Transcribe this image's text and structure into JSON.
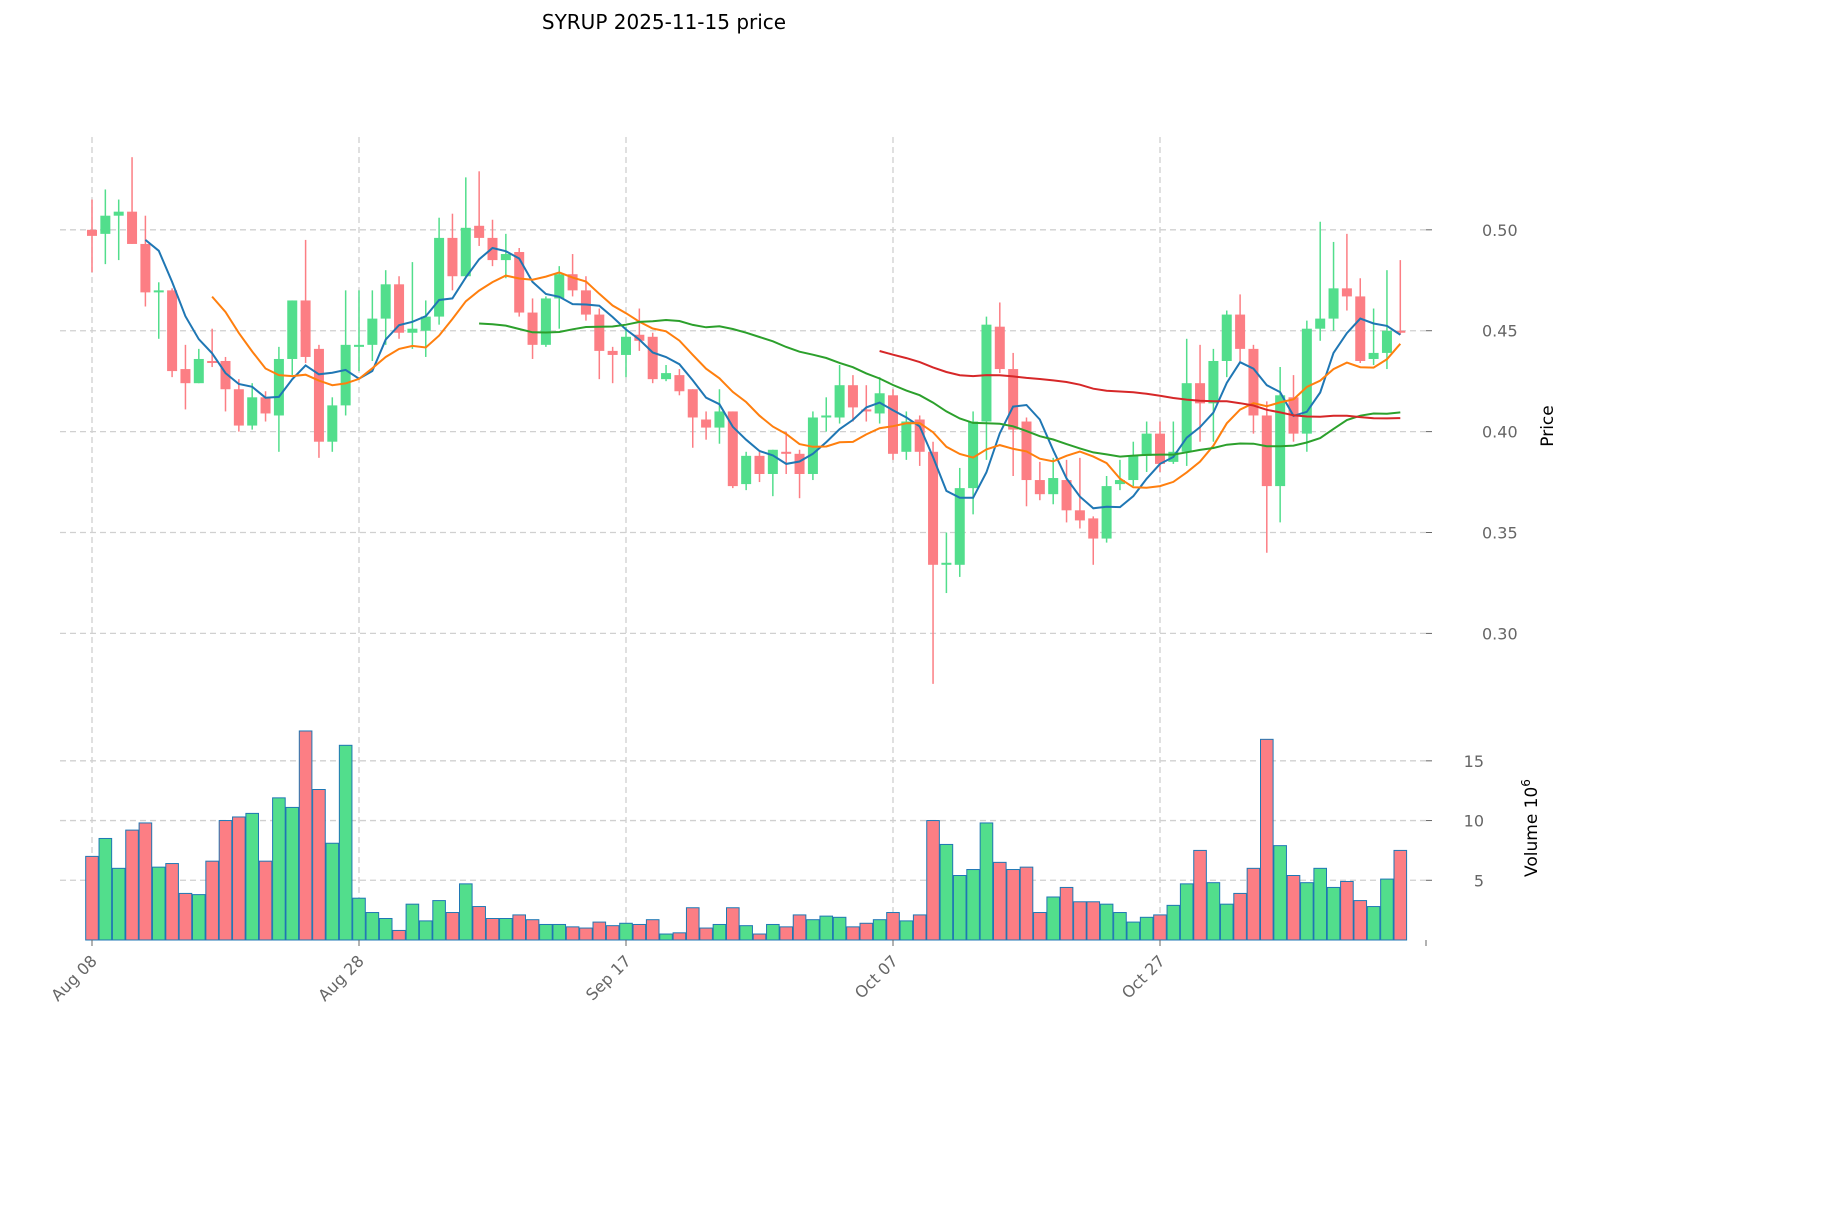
{
  "chart_data": {
    "type": "candlestick",
    "title": "SYRUP  2025-11-15  price",
    "ylabel": "Price",
    "volume_label": "Volume  10",
    "volume_exponent": "6",
    "ylim": [
      0.267,
      0.546
    ],
    "volume_ylim": [
      0,
      18
    ],
    "grid": true,
    "price_ticks": [
      "0.30",
      "0.35",
      "0.40",
      "0.45",
      "0.50"
    ],
    "volume_ticks": [
      "5",
      "10",
      "15"
    ],
    "x_ticks": [
      {
        "index": 0,
        "label": "Aug 08"
      },
      {
        "index": 20,
        "label": "Aug 28"
      },
      {
        "index": 40,
        "label": "Sep 17"
      },
      {
        "index": 60,
        "label": "Oct 07"
      },
      {
        "index": 80,
        "label": "Oct 27"
      }
    ],
    "moving_averages": [
      {
        "period": 5,
        "color": "#1f77b4"
      },
      {
        "period": 10,
        "color": "#ff7f0e"
      },
      {
        "period": 30,
        "color": "#2ca02c"
      },
      {
        "period": 60,
        "color": "#d62728"
      }
    ],
    "colors": {
      "up": "#52de8c",
      "down": "#fc7e84",
      "volume_edge": "#1f77b4"
    },
    "ohlc": [
      [
        0.5,
        0.515,
        0.479,
        0.497
      ],
      [
        0.498,
        0.52,
        0.483,
        0.507
      ],
      [
        0.507,
        0.515,
        0.485,
        0.509
      ],
      [
        0.509,
        0.536,
        0.493,
        0.493
      ],
      [
        0.493,
        0.507,
        0.462,
        0.469
      ],
      [
        0.469,
        0.474,
        0.446,
        0.47
      ],
      [
        0.47,
        0.471,
        0.427,
        0.43
      ],
      [
        0.431,
        0.443,
        0.411,
        0.424
      ],
      [
        0.424,
        0.441,
        0.424,
        0.436
      ],
      [
        0.435,
        0.451,
        0.432,
        0.434
      ],
      [
        0.435,
        0.437,
        0.41,
        0.421
      ],
      [
        0.421,
        0.426,
        0.4,
        0.403
      ],
      [
        0.403,
        0.424,
        0.401,
        0.417
      ],
      [
        0.417,
        0.42,
        0.405,
        0.409
      ],
      [
        0.408,
        0.442,
        0.39,
        0.436
      ],
      [
        0.436,
        0.465,
        0.428,
        0.465
      ],
      [
        0.465,
        0.495,
        0.434,
        0.437
      ],
      [
        0.441,
        0.443,
        0.387,
        0.395
      ],
      [
        0.395,
        0.417,
        0.39,
        0.413
      ],
      [
        0.413,
        0.47,
        0.408,
        0.443
      ],
      [
        0.442,
        0.47,
        0.43,
        0.443
      ],
      [
        0.443,
        0.47,
        0.435,
        0.456
      ],
      [
        0.456,
        0.48,
        0.443,
        0.473
      ],
      [
        0.473,
        0.477,
        0.446,
        0.449
      ],
      [
        0.449,
        0.484,
        0.441,
        0.451
      ],
      [
        0.45,
        0.465,
        0.437,
        0.457
      ],
      [
        0.457,
        0.506,
        0.453,
        0.496
      ],
      [
        0.496,
        0.508,
        0.47,
        0.477
      ],
      [
        0.477,
        0.526,
        0.476,
        0.501
      ],
      [
        0.502,
        0.529,
        0.492,
        0.496
      ],
      [
        0.496,
        0.505,
        0.482,
        0.485
      ],
      [
        0.485,
        0.498,
        0.476,
        0.488
      ],
      [
        0.489,
        0.491,
        0.457,
        0.459
      ],
      [
        0.459,
        0.466,
        0.436,
        0.443
      ],
      [
        0.443,
        0.467,
        0.442,
        0.466
      ],
      [
        0.466,
        0.482,
        0.451,
        0.478
      ],
      [
        0.478,
        0.488,
        0.467,
        0.47
      ],
      [
        0.47,
        0.477,
        0.455,
        0.458
      ],
      [
        0.458,
        0.461,
        0.426,
        0.44
      ],
      [
        0.44,
        0.442,
        0.424,
        0.438
      ],
      [
        0.438,
        0.452,
        0.427,
        0.447
      ],
      [
        0.448,
        0.461,
        0.44,
        0.445
      ],
      [
        0.447,
        0.449,
        0.424,
        0.426
      ],
      [
        0.426,
        0.433,
        0.425,
        0.429
      ],
      [
        0.428,
        0.431,
        0.418,
        0.42
      ],
      [
        0.421,
        0.421,
        0.392,
        0.407
      ],
      [
        0.406,
        0.41,
        0.396,
        0.402
      ],
      [
        0.402,
        0.421,
        0.394,
        0.41
      ],
      [
        0.41,
        0.41,
        0.372,
        0.373
      ],
      [
        0.374,
        0.39,
        0.371,
        0.388
      ],
      [
        0.388,
        0.39,
        0.375,
        0.379
      ],
      [
        0.379,
        0.391,
        0.368,
        0.391
      ],
      [
        0.39,
        0.4,
        0.379,
        0.389
      ],
      [
        0.389,
        0.391,
        0.367,
        0.379
      ],
      [
        0.379,
        0.41,
        0.376,
        0.407
      ],
      [
        0.407,
        0.417,
        0.4,
        0.408
      ],
      [
        0.407,
        0.433,
        0.404,
        0.423
      ],
      [
        0.423,
        0.428,
        0.405,
        0.412
      ],
      [
        0.411,
        0.423,
        0.405,
        0.41
      ],
      [
        0.409,
        0.427,
        0.404,
        0.419
      ],
      [
        0.418,
        0.421,
        0.386,
        0.389
      ],
      [
        0.39,
        0.41,
        0.386,
        0.405
      ],
      [
        0.406,
        0.408,
        0.383,
        0.39
      ],
      [
        0.39,
        0.395,
        0.275,
        0.334
      ],
      [
        0.334,
        0.35,
        0.32,
        0.335
      ],
      [
        0.334,
        0.382,
        0.328,
        0.372
      ],
      [
        0.372,
        0.41,
        0.359,
        0.405
      ],
      [
        0.405,
        0.457,
        0.386,
        0.453
      ],
      [
        0.452,
        0.464,
        0.429,
        0.431
      ],
      [
        0.431,
        0.439,
        0.378,
        0.401
      ],
      [
        0.405,
        0.407,
        0.363,
        0.376
      ],
      [
        0.376,
        0.385,
        0.366,
        0.369
      ],
      [
        0.369,
        0.387,
        0.364,
        0.377
      ],
      [
        0.376,
        0.386,
        0.355,
        0.361
      ],
      [
        0.361,
        0.387,
        0.352,
        0.356
      ],
      [
        0.357,
        0.358,
        0.334,
        0.347
      ],
      [
        0.347,
        0.378,
        0.345,
        0.373
      ],
      [
        0.374,
        0.386,
        0.371,
        0.376
      ],
      [
        0.376,
        0.395,
        0.373,
        0.388
      ],
      [
        0.388,
        0.405,
        0.38,
        0.399
      ],
      [
        0.399,
        0.405,
        0.38,
        0.384
      ],
      [
        0.385,
        0.405,
        0.384,
        0.39
      ],
      [
        0.39,
        0.446,
        0.383,
        0.424
      ],
      [
        0.424,
        0.443,
        0.395,
        0.414
      ],
      [
        0.414,
        0.441,
        0.395,
        0.435
      ],
      [
        0.435,
        0.46,
        0.427,
        0.458
      ],
      [
        0.458,
        0.468,
        0.435,
        0.441
      ],
      [
        0.441,
        0.443,
        0.399,
        0.408
      ],
      [
        0.408,
        0.415,
        0.34,
        0.373
      ],
      [
        0.373,
        0.432,
        0.355,
        0.418
      ],
      [
        0.417,
        0.428,
        0.395,
        0.399
      ],
      [
        0.399,
        0.455,
        0.39,
        0.451
      ],
      [
        0.451,
        0.504,
        0.445,
        0.456
      ],
      [
        0.456,
        0.494,
        0.45,
        0.471
      ],
      [
        0.471,
        0.498,
        0.46,
        0.467
      ],
      [
        0.467,
        0.476,
        0.434,
        0.435
      ],
      [
        0.436,
        0.461,
        0.433,
        0.439
      ],
      [
        0.439,
        0.48,
        0.431,
        0.45
      ],
      [
        0.45,
        0.485,
        0.448,
        0.449
      ]
    ],
    "volume_millions": [
      7.0,
      8.5,
      6.0,
      9.2,
      9.8,
      6.1,
      6.4,
      3.9,
      3.8,
      6.6,
      10.0,
      10.3,
      10.6,
      6.6,
      11.9,
      11.1,
      17.5,
      12.6,
      8.1,
      16.3,
      3.5,
      2.3,
      1.8,
      0.8,
      3.0,
      1.6,
      3.3,
      2.3,
      4.7,
      2.8,
      1.8,
      1.8,
      2.1,
      1.7,
      1.3,
      1.3,
      1.1,
      1.0,
      1.5,
      1.2,
      1.4,
      1.3,
      1.7,
      0.5,
      0.6,
      2.7,
      1.0,
      1.3,
      2.7,
      1.2,
      0.5,
      1.3,
      1.1,
      2.1,
      1.7,
      2.0,
      1.9,
      1.1,
      1.4,
      1.7,
      2.3,
      1.6,
      2.1,
      10.0,
      8.0,
      5.4,
      5.9,
      9.8,
      6.5,
      5.9,
      6.1,
      2.3,
      3.6,
      4.4,
      3.2,
      3.2,
      3.0,
      2.3,
      1.5,
      1.9,
      2.1,
      2.9,
      4.7,
      7.5,
      4.8,
      3.0,
      3.9,
      6.0,
      16.8,
      7.9,
      5.4,
      4.8,
      6.0,
      4.4,
      4.9,
      3.3,
      2.8,
      5.1,
      7.5
    ]
  }
}
